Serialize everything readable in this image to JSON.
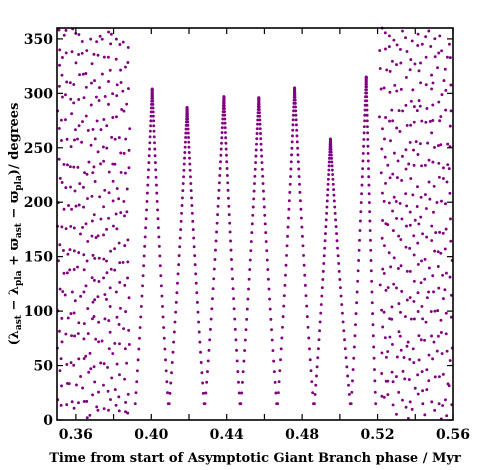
{
  "chart_data": {
    "type": "scatter",
    "title": "",
    "xlabel": "Time from start of Asymptotic Giant Branch phase / Myr",
    "ylabel": "(λast − λpla + ϖast − ϖpla)/ degrees",
    "ylabel_parts": {
      "open": "(λ",
      "sub1": "ast",
      "op1": " − λ",
      "sub2": "pla",
      "op2": " + ϖ",
      "sub3": "ast",
      "op3": " − ϖ",
      "sub4": "pla",
      "close": ")/ degrees"
    },
    "xlim": [
      0.35,
      0.56
    ],
    "ylim": [
      0,
      360
    ],
    "xticks": [
      0.36,
      0.38,
      0.4,
      0.42,
      0.44,
      0.46,
      0.48,
      0.5,
      0.52,
      0.54,
      0.56
    ],
    "xtick_labels": [
      "0.36",
      "",
      "0.40",
      "",
      "0.44",
      "",
      "0.48",
      "",
      "0.52",
      "",
      "0.56"
    ],
    "yticks": [
      0,
      50,
      100,
      150,
      200,
      250,
      300,
      350
    ],
    "ytick_labels": [
      "0",
      "50",
      "100",
      "150",
      "200",
      "250",
      "300",
      "350"
    ],
    "grid": false,
    "marker_color": "#800080",
    "series": [
      {
        "description_kind": "circulating",
        "x_start": 0.35,
        "x_end": 0.389,
        "y_min": 0,
        "y_max": 360,
        "points": 330
      },
      {
        "description_kind": "libration-arches",
        "arches": [
          {
            "left_x": 0.3915,
            "right_x": 0.409,
            "peak_x": 0.4005,
            "peak_y": 304,
            "min_y": 15
          },
          {
            "left_x": 0.4095,
            "right_x": 0.428,
            "peak_x": 0.419,
            "peak_y": 287,
            "min_y": 15
          },
          {
            "left_x": 0.4285,
            "right_x": 0.447,
            "peak_x": 0.4385,
            "peak_y": 297,
            "min_y": 15
          },
          {
            "left_x": 0.4475,
            "right_x": 0.4665,
            "peak_x": 0.457,
            "peak_y": 296,
            "min_y": 15
          },
          {
            "left_x": 0.467,
            "right_x": 0.486,
            "peak_x": 0.476,
            "peak_y": 305,
            "min_y": 15
          },
          {
            "left_x": 0.4865,
            "right_x": 0.5055,
            "peak_x": 0.495,
            "peak_y": 258,
            "min_y": 15
          },
          {
            "left_x": 0.506,
            "right_x": 0.519,
            "peak_x": 0.514,
            "peak_y": 315,
            "min_y": 15
          }
        ]
      },
      {
        "description_kind": "circulating",
        "x_start": 0.521,
        "x_end": 0.56,
        "y_min": 0,
        "y_max": 360,
        "points": 330
      }
    ]
  }
}
